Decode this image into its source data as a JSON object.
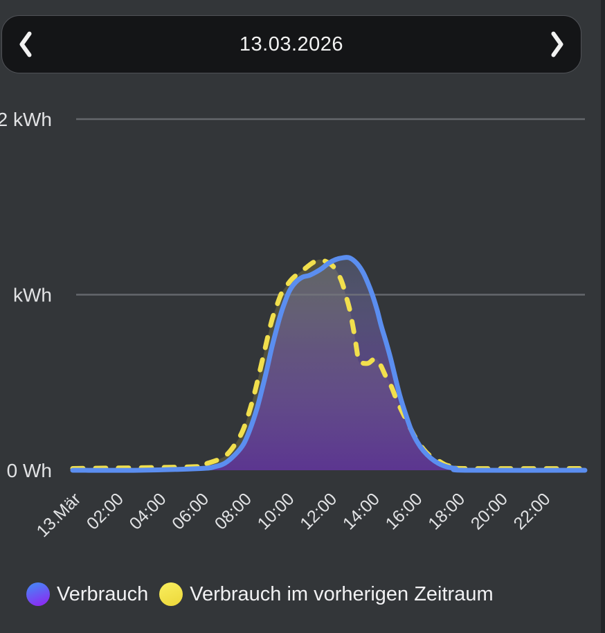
{
  "header": {
    "date": "13.03.2026",
    "prev_icon": "chevron-left",
    "next_icon": "chevron-right"
  },
  "chart_data": {
    "type": "area",
    "title": "",
    "xlabel": "",
    "ylabel": "",
    "x_unit": "time-of-day-hours",
    "y_unit": "kWh",
    "xlim": [
      0,
      24
    ],
    "ylim": [
      0,
      2
    ],
    "grid": "horizontal",
    "legend_position": "bottom",
    "x_ticks": [
      {
        "label": "13.Mär",
        "hour": 0
      },
      {
        "label": "02:00",
        "hour": 2
      },
      {
        "label": "04:00",
        "hour": 4
      },
      {
        "label": "06:00",
        "hour": 6
      },
      {
        "label": "08:00",
        "hour": 8
      },
      {
        "label": "10:00",
        "hour": 10
      },
      {
        "label": "12:00",
        "hour": 12
      },
      {
        "label": "14:00",
        "hour": 14
      },
      {
        "label": "16:00",
        "hour": 16
      },
      {
        "label": "18:00",
        "hour": 18
      },
      {
        "label": "20:00",
        "hour": 20
      },
      {
        "label": "22:00",
        "hour": 22
      }
    ],
    "y_ticks": [
      {
        "label": "2 kWh",
        "kwh": 2
      },
      {
        "label": "kWh",
        "kwh": 1
      },
      {
        "label": "0 Wh",
        "kwh": 0
      }
    ],
    "series": [
      {
        "name": "Verbrauch",
        "line_color": "#5b8ef0",
        "line_style": "solid",
        "fill": "gradient",
        "points": [
          [
            0.0,
            0.0
          ],
          [
            3.08,
            0.0
          ],
          [
            6.0,
            0.01
          ],
          [
            6.65,
            0.02
          ],
          [
            7.13,
            0.04
          ],
          [
            7.62,
            0.09
          ],
          [
            8.01,
            0.15
          ],
          [
            8.33,
            0.24
          ],
          [
            8.63,
            0.35
          ],
          [
            8.89,
            0.47
          ],
          [
            9.11,
            0.58
          ],
          [
            9.31,
            0.69
          ],
          [
            9.5,
            0.78
          ],
          [
            9.7,
            0.87
          ],
          [
            9.89,
            0.94
          ],
          [
            10.15,
            1.02
          ],
          [
            10.44,
            1.07
          ],
          [
            10.77,
            1.1
          ],
          [
            11.09,
            1.11
          ],
          [
            11.42,
            1.13
          ],
          [
            11.68,
            1.15
          ],
          [
            12.0,
            1.18
          ],
          [
            12.32,
            1.2
          ],
          [
            12.65,
            1.21
          ],
          [
            12.97,
            1.21
          ],
          [
            13.3,
            1.18
          ],
          [
            13.59,
            1.13
          ],
          [
            13.82,
            1.07
          ],
          [
            14.04,
            1.0
          ],
          [
            14.27,
            0.91
          ],
          [
            14.46,
            0.82
          ],
          [
            14.66,
            0.74
          ],
          [
            14.89,
            0.64
          ],
          [
            15.11,
            0.53
          ],
          [
            15.34,
            0.42
          ],
          [
            15.6,
            0.32
          ],
          [
            15.86,
            0.23
          ],
          [
            16.15,
            0.16
          ],
          [
            16.44,
            0.11
          ],
          [
            16.77,
            0.07
          ],
          [
            17.12,
            0.04
          ],
          [
            17.51,
            0.02
          ],
          [
            17.94,
            0.01
          ],
          [
            18.39,
            0.0
          ],
          [
            24.0,
            0.0
          ]
        ]
      },
      {
        "name": "Verbrauch im vorherigen Zeitraum",
        "line_color": "#f1df4d",
        "line_style": "dashed",
        "fill": "flat",
        "points": [
          [
            0.0,
            0.01
          ],
          [
            5.68,
            0.02
          ],
          [
            6.32,
            0.04
          ],
          [
            6.81,
            0.06
          ],
          [
            7.23,
            0.09
          ],
          [
            7.62,
            0.15
          ],
          [
            7.95,
            0.22
          ],
          [
            8.24,
            0.32
          ],
          [
            8.5,
            0.43
          ],
          [
            8.72,
            0.54
          ],
          [
            8.95,
            0.66
          ],
          [
            9.18,
            0.78
          ],
          [
            9.37,
            0.87
          ],
          [
            9.57,
            0.94
          ],
          [
            9.79,
            1.01
          ],
          [
            10.02,
            1.05
          ],
          [
            10.28,
            1.09
          ],
          [
            10.57,
            1.12
          ],
          [
            10.9,
            1.15
          ],
          [
            11.22,
            1.18
          ],
          [
            11.55,
            1.2
          ],
          [
            11.84,
            1.19
          ],
          [
            12.13,
            1.17
          ],
          [
            12.39,
            1.13
          ],
          [
            12.62,
            1.07
          ],
          [
            12.81,
            0.99
          ],
          [
            12.97,
            0.92
          ],
          [
            13.1,
            0.84
          ],
          [
            13.23,
            0.75
          ],
          [
            13.33,
            0.67
          ],
          [
            13.39,
            0.62
          ],
          [
            13.59,
            0.61
          ],
          [
            13.85,
            0.61
          ],
          [
            14.08,
            0.63
          ],
          [
            14.27,
            0.63
          ],
          [
            14.46,
            0.59
          ],
          [
            14.69,
            0.53
          ],
          [
            14.92,
            0.48
          ],
          [
            15.15,
            0.41
          ],
          [
            15.41,
            0.34
          ],
          [
            15.7,
            0.27
          ],
          [
            15.99,
            0.2
          ],
          [
            16.31,
            0.14
          ],
          [
            16.67,
            0.09
          ],
          [
            17.06,
            0.06
          ],
          [
            17.48,
            0.03
          ],
          [
            17.9,
            0.02
          ],
          [
            18.32,
            0.01
          ],
          [
            24.0,
            0.01
          ]
        ]
      }
    ]
  },
  "legend": {
    "items": [
      {
        "label": "Verbrauch",
        "swatch_colors": [
          "#4e7cf6",
          "#8a2df2"
        ]
      },
      {
        "label": "Verbrauch im vorherigen Zeitraum",
        "swatch_colors": [
          "#f7ea58",
          "#eeda3e"
        ]
      }
    ]
  },
  "colors": {
    "background": "#333639",
    "header_bar": "#141517",
    "header_border": "#505257",
    "grid_line": "#77797d",
    "axis_text": "#e2e3e5",
    "blue_fill_top": "#8896c8",
    "blue_fill_mid": "#6f57ad",
    "blue_fill_bottom": "#5c3494",
    "yellow_fill": "#ecdc55"
  }
}
